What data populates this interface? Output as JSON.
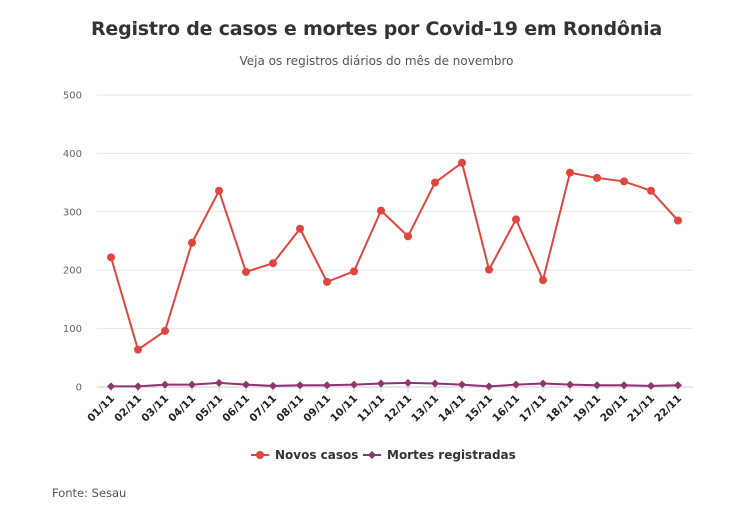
{
  "title": "Registro de casos e mortes por Covid-19 em Rondônia",
  "subtitle": "Veja os registros diários do mês de novembro",
  "source": "Fonte: Sesau",
  "chart_data": {
    "type": "line",
    "title": "Registro de casos e mortes por Covid-19 em Rondônia",
    "subtitle": "Veja os registros diários do mês de novembro",
    "categories": [
      "01/11",
      "02/11",
      "03/11",
      "04/11",
      "05/11",
      "06/11",
      "07/11",
      "08/11",
      "09/11",
      "10/11",
      "11/11",
      "12/11",
      "13/11",
      "14/11",
      "15/11",
      "16/11",
      "17/11",
      "18/11",
      "19/11",
      "20/11",
      "21/11",
      "22/11"
    ],
    "series": [
      {
        "name": "Novos casos",
        "color": "#e0463e",
        "marker": "circle",
        "values": [
          222,
          64,
          96,
          247,
          336,
          197,
          212,
          271,
          180,
          198,
          302,
          258,
          350,
          384,
          201,
          287,
          183,
          367,
          358,
          352,
          336,
          285
        ]
      },
      {
        "name": "Mortes registradas",
        "color": "#8e3470",
        "marker": "diamond",
        "values": [
          1,
          1,
          4,
          4,
          7,
          4,
          2,
          3,
          3,
          4,
          6,
          7,
          6,
          4,
          1,
          4,
          6,
          4,
          3,
          3,
          2,
          3
        ]
      }
    ],
    "yticks": [
      0,
      100,
      200,
      300,
      400,
      500
    ],
    "ylim": [
      0,
      500
    ],
    "grid": true,
    "legend_position": "bottom-center"
  }
}
